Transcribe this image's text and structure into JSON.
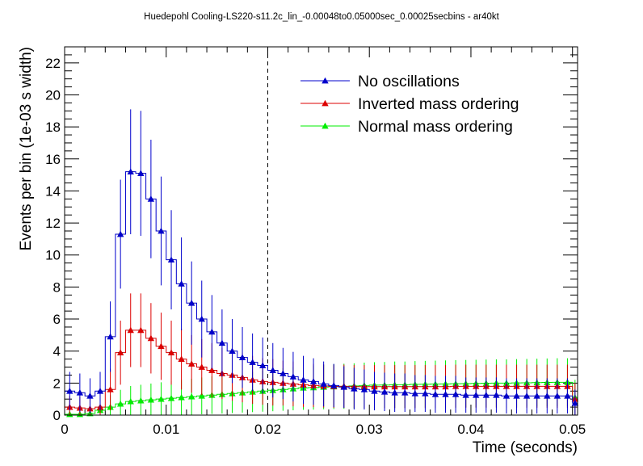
{
  "chart_data": {
    "type": "line",
    "title": "Huedepohl Cooling-LS220-s11.2c_lin_-0.00048to0.05000sec_0.00025secbins - ar40kt",
    "xlabel": "Time (seconds)",
    "ylabel": "Events per bin (1e-03 s width)",
    "xlim": [
      0,
      0.0505
    ],
    "ylim": [
      0,
      23
    ],
    "grid": false,
    "legend_position": "top-right",
    "x_ticks": [
      {
        "value": 0,
        "label": "0"
      },
      {
        "value": 0.01,
        "label": "0.01"
      },
      {
        "value": 0.02,
        "label": "0.02"
      },
      {
        "value": 0.03,
        "label": "0.03"
      },
      {
        "value": 0.04,
        "label": "0.04"
      },
      {
        "value": 0.05,
        "label": "0.05"
      }
    ],
    "y_ticks": [
      {
        "value": 0,
        "label": "0"
      },
      {
        "value": 2,
        "label": "2"
      },
      {
        "value": 4,
        "label": "4"
      },
      {
        "value": 6,
        "label": "6"
      },
      {
        "value": 8,
        "label": "8"
      },
      {
        "value": 10,
        "label": "10"
      },
      {
        "value": 12,
        "label": "12"
      },
      {
        "value": 14,
        "label": "14"
      },
      {
        "value": 16,
        "label": "16"
      },
      {
        "value": 18,
        "label": "18"
      },
      {
        "value": 20,
        "label": "20"
      },
      {
        "value": 22,
        "label": "22"
      }
    ],
    "x_minor_step": 0.002,
    "y_minor_step": 0.5,
    "vline": 0.02,
    "bin_edges": [
      0,
      0.001,
      0.002,
      0.003,
      0.004,
      0.005,
      0.006,
      0.007,
      0.008,
      0.009,
      0.01,
      0.011,
      0.012,
      0.013,
      0.014,
      0.015,
      0.016,
      0.017,
      0.018,
      0.019,
      0.02,
      0.021,
      0.022,
      0.023,
      0.024,
      0.025,
      0.026,
      0.027,
      0.028,
      0.029,
      0.03,
      0.031,
      0.032,
      0.033,
      0.034,
      0.035,
      0.036,
      0.037,
      0.038,
      0.039,
      0.04,
      0.041,
      0.042,
      0.043,
      0.044,
      0.045,
      0.046,
      0.047,
      0.048,
      0.049,
      0.05,
      0.0505
    ],
    "series": [
      {
        "name": "No oscillations",
        "color": "#0000cc",
        "values": [
          1.5,
          1.4,
          1.2,
          1.5,
          4.9,
          11.3,
          15.2,
          15.1,
          13.5,
          11.5,
          9.7,
          8.2,
          7.0,
          6.0,
          5.2,
          4.5,
          4.0,
          3.6,
          3.3,
          3.1,
          2.8,
          2.6,
          2.4,
          2.2,
          2.1,
          1.95,
          1.85,
          1.75,
          1.65,
          1.6,
          1.5,
          1.45,
          1.4,
          1.4,
          1.35,
          1.35,
          1.3,
          1.3,
          1.3,
          1.25,
          1.25,
          1.25,
          1.25,
          1.2,
          1.2,
          1.2,
          1.2,
          1.2,
          1.2,
          1.2,
          0.75
        ],
        "errors": [
          1.2,
          1.2,
          1.1,
          1.2,
          2.2,
          3.4,
          3.9,
          3.9,
          3.7,
          3.4,
          3.1,
          2.9,
          2.6,
          2.4,
          2.3,
          2.1,
          2.0,
          1.9,
          1.8,
          1.75,
          1.7,
          1.6,
          1.55,
          1.5,
          1.45,
          1.4,
          1.35,
          1.3,
          1.3,
          1.25,
          1.2,
          1.2,
          1.2,
          1.2,
          1.15,
          1.15,
          1.15,
          1.15,
          1.15,
          1.1,
          1.1,
          1.1,
          1.1,
          1.1,
          1.1,
          1.1,
          1.1,
          1.1,
          1.1,
          1.1,
          0.85
        ]
      },
      {
        "name": "Inverted mass ordering",
        "color": "#dd0000",
        "values": [
          0.5,
          0.45,
          0.4,
          0.5,
          1.6,
          3.9,
          5.3,
          5.3,
          4.8,
          4.3,
          3.9,
          3.5,
          3.2,
          3.0,
          2.8,
          2.6,
          2.5,
          2.35,
          2.2,
          2.1,
          2.05,
          2.0,
          1.95,
          1.9,
          1.85,
          1.82,
          1.8,
          1.8,
          1.78,
          1.78,
          1.78,
          1.78,
          1.78,
          1.78,
          1.78,
          1.78,
          1.78,
          1.78,
          1.8,
          1.8,
          1.8,
          1.8,
          1.8,
          1.8,
          1.8,
          1.8,
          1.8,
          1.8,
          1.8,
          1.8,
          1.0
        ],
        "errors": [
          0.7,
          0.7,
          0.65,
          0.7,
          1.3,
          2.0,
          2.3,
          2.3,
          2.2,
          2.1,
          2.0,
          1.9,
          1.8,
          1.75,
          1.7,
          1.6,
          1.6,
          1.55,
          1.5,
          1.45,
          1.45,
          1.4,
          1.4,
          1.4,
          1.35,
          1.35,
          1.35,
          1.35,
          1.35,
          1.35,
          1.35,
          1.35,
          1.35,
          1.35,
          1.35,
          1.35,
          1.35,
          1.35,
          1.35,
          1.35,
          1.35,
          1.35,
          1.35,
          1.35,
          1.35,
          1.35,
          1.35,
          1.35,
          1.35,
          1.35,
          1.0
        ]
      },
      {
        "name": "Normal mass ordering",
        "color": "#00ee00",
        "values": [
          0.05,
          0.05,
          0.1,
          0.3,
          0.5,
          0.7,
          0.85,
          0.9,
          0.95,
          1.0,
          1.05,
          1.1,
          1.15,
          1.2,
          1.25,
          1.3,
          1.35,
          1.4,
          1.45,
          1.5,
          1.55,
          1.6,
          1.65,
          1.7,
          1.72,
          1.75,
          1.78,
          1.8,
          1.82,
          1.85,
          1.87,
          1.88,
          1.9,
          1.9,
          1.92,
          1.93,
          1.94,
          1.95,
          1.96,
          1.97,
          1.98,
          1.99,
          2.0,
          2.0,
          2.01,
          2.02,
          2.03,
          2.04,
          2.05,
          2.05,
          1.1
        ]
      }
    ]
  }
}
